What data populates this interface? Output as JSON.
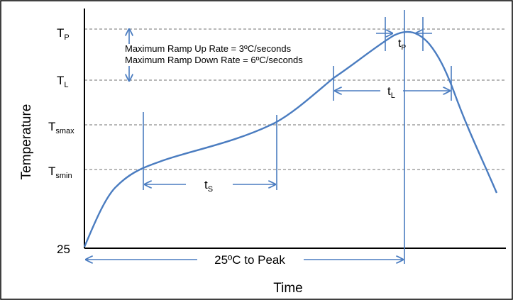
{
  "axes": {
    "ylabel": "Temperature",
    "xlabel": "Time",
    "y_origin_label": "25"
  },
  "levels": [
    {
      "id": "tp",
      "main": "T",
      "sub": "P"
    },
    {
      "id": "tl",
      "main": "T",
      "sub": "L"
    },
    {
      "id": "tsmax",
      "main": "T",
      "sub": "smax"
    },
    {
      "id": "tsmin",
      "main": "T",
      "sub": "smin"
    }
  ],
  "notes": {
    "ramp_up": "Maximum Ramp Up Rate = 3ºC/seconds",
    "ramp_down": "Maximum Ramp Down Rate = 6ºC/seconds"
  },
  "intervals": [
    {
      "id": "ts",
      "main": "t",
      "sub": "S"
    },
    {
      "id": "tl",
      "main": "t",
      "sub": "L"
    },
    {
      "id": "tp",
      "main": "t",
      "sub": "P"
    },
    {
      "id": "to-peak",
      "label": "25ºC to Peak"
    }
  ],
  "colors": {
    "curve": "#4a7cc0",
    "marker": "#4a7cc0",
    "gridline": "#a0a0a0",
    "axis": "#000000"
  }
}
